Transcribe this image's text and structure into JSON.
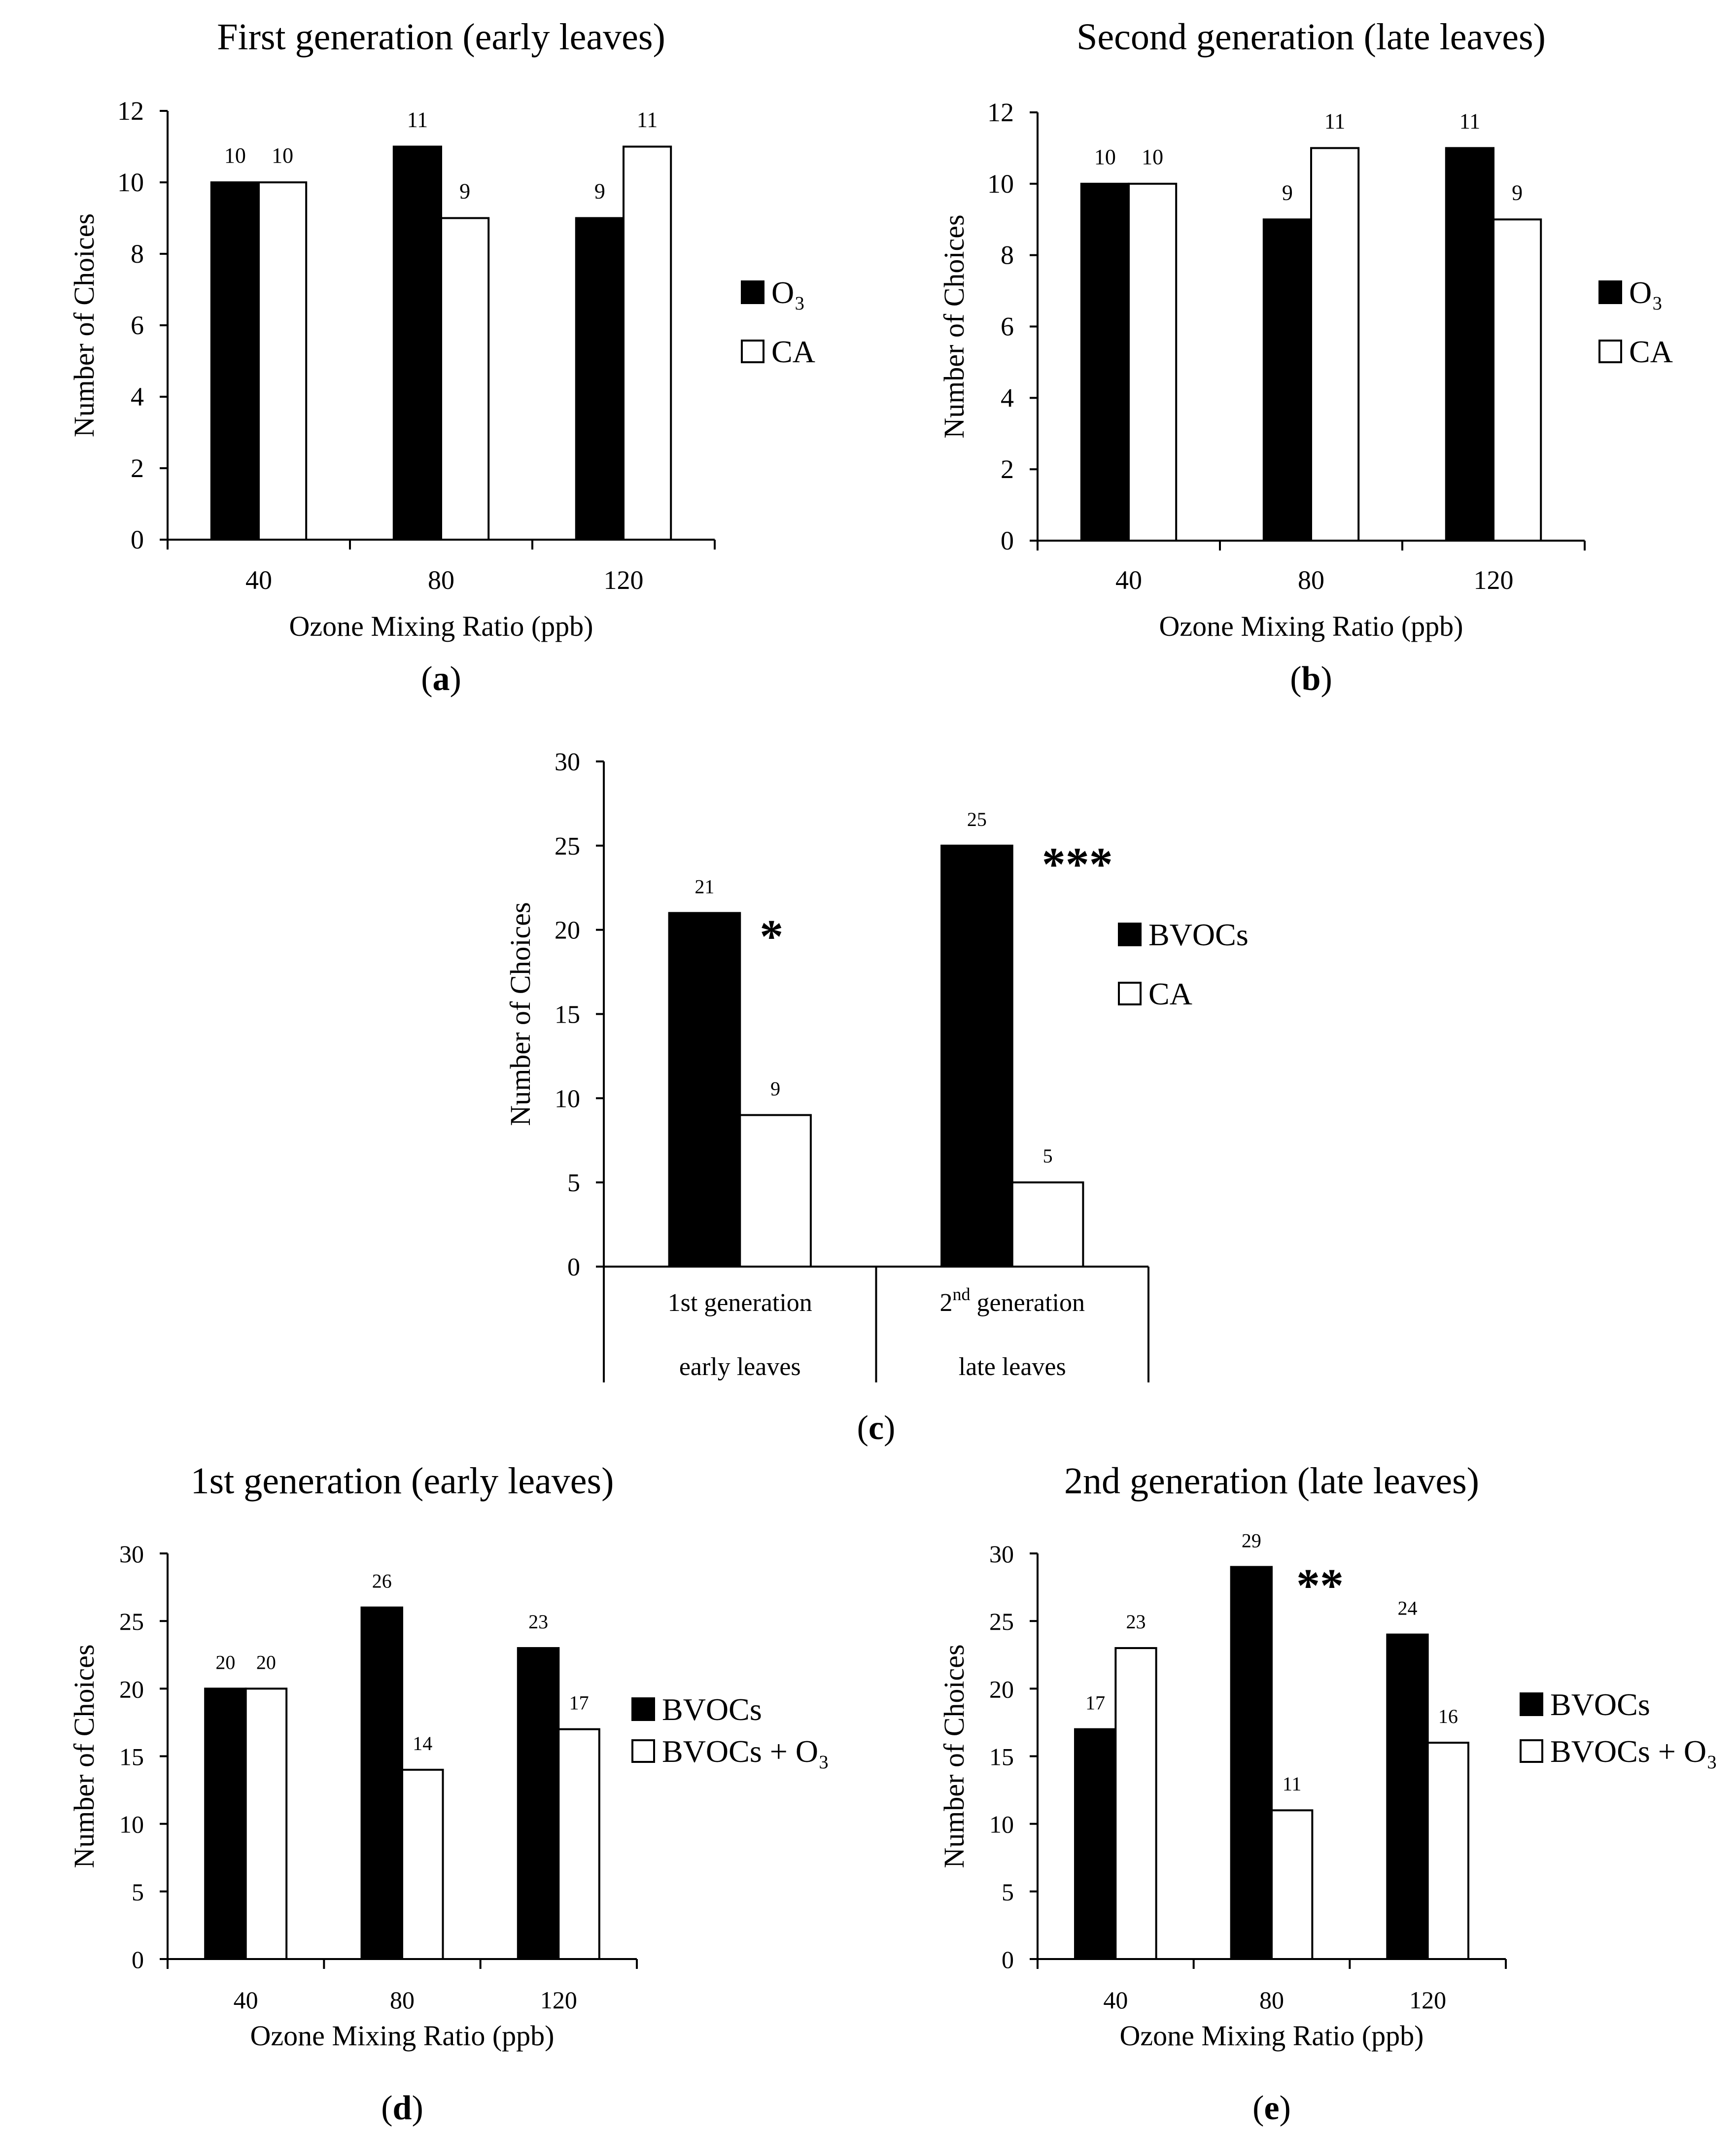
{
  "chart_data": [
    {
      "id": "a",
      "type": "bar",
      "title": "First generation (early leaves)",
      "panel_label": "a",
      "xlabel": "Ozone Mixing Ratio (ppb)",
      "ylabel": "Number of Choices",
      "ylim": [
        0,
        12
      ],
      "yticks": [
        "0",
        "2",
        "4",
        "6",
        "8",
        "10",
        "12"
      ],
      "categories": [
        "40",
        "80",
        "120"
      ],
      "series": [
        {
          "name": "O₃",
          "color": "#000000",
          "values": [
            10,
            11,
            9
          ]
        },
        {
          "name": "CA",
          "color": "#ffffff",
          "values": [
            10,
            9,
            11
          ]
        }
      ],
      "annotations": []
    },
    {
      "id": "b",
      "type": "bar",
      "title": "Second generation (late leaves)",
      "panel_label": "b",
      "xlabel": "Ozone Mixing Ratio (ppb)",
      "ylabel": "Number of Choices",
      "ylim": [
        0,
        12
      ],
      "yticks": [
        "0",
        "2",
        "4",
        "6",
        "8",
        "10",
        "12"
      ],
      "categories": [
        "40",
        "80",
        "120"
      ],
      "series": [
        {
          "name": "O₃",
          "color": "#000000",
          "values": [
            10,
            9,
            11
          ]
        },
        {
          "name": "CA",
          "color": "#ffffff",
          "values": [
            10,
            11,
            9
          ]
        }
      ],
      "annotations": []
    },
    {
      "id": "c",
      "type": "bar",
      "title": "",
      "panel_label": "c",
      "xlabel": "",
      "ylabel": "Number of Choices",
      "ylim": [
        0,
        30
      ],
      "yticks": [
        "0",
        "5",
        "10",
        "15",
        "20",
        "25",
        "30"
      ],
      "categories": [
        "1st generation",
        "2nd generation"
      ],
      "category_sublabels": [
        "early leaves",
        "late leaves"
      ],
      "series": [
        {
          "name": "BVOCs",
          "color": "#000000",
          "values": [
            21,
            25
          ]
        },
        {
          "name": "CA",
          "color": "#ffffff",
          "values": [
            9,
            5
          ]
        }
      ],
      "annotations": [
        {
          "category_index": 0,
          "text": "*"
        },
        {
          "category_index": 1,
          "text": "***"
        }
      ]
    },
    {
      "id": "d",
      "type": "bar",
      "title": "1st generation (early leaves)",
      "panel_label": "d",
      "xlabel": "Ozone Mixing Ratio (ppb)",
      "ylabel": "Number of Choices",
      "ylim": [
        0,
        30
      ],
      "yticks": [
        "0",
        "5",
        "10",
        "15",
        "20",
        "25",
        "30"
      ],
      "categories": [
        "40",
        "80",
        "120"
      ],
      "series": [
        {
          "name": "BVOCs",
          "color": "#000000",
          "values": [
            20,
            26,
            23
          ]
        },
        {
          "name": "BVOCs + O₃",
          "color": "#ffffff",
          "values": [
            20,
            14,
            17
          ]
        }
      ],
      "annotations": []
    },
    {
      "id": "e",
      "type": "bar",
      "title": "2nd generation (late leaves)",
      "panel_label": "e",
      "xlabel": "Ozone Mixing Ratio (ppb)",
      "ylabel": "Number of Choices",
      "ylim": [
        0,
        30
      ],
      "yticks": [
        "0",
        "5",
        "10",
        "15",
        "20",
        "25",
        "30"
      ],
      "categories": [
        "40",
        "80",
        "120"
      ],
      "series": [
        {
          "name": "BVOCs",
          "color": "#000000",
          "values": [
            17,
            29,
            24
          ]
        },
        {
          "name": "BVOCs + O₃",
          "color": "#ffffff",
          "values": [
            23,
            11,
            16
          ]
        }
      ],
      "annotations": [
        {
          "category_index": 1,
          "text": "**"
        }
      ]
    }
  ]
}
